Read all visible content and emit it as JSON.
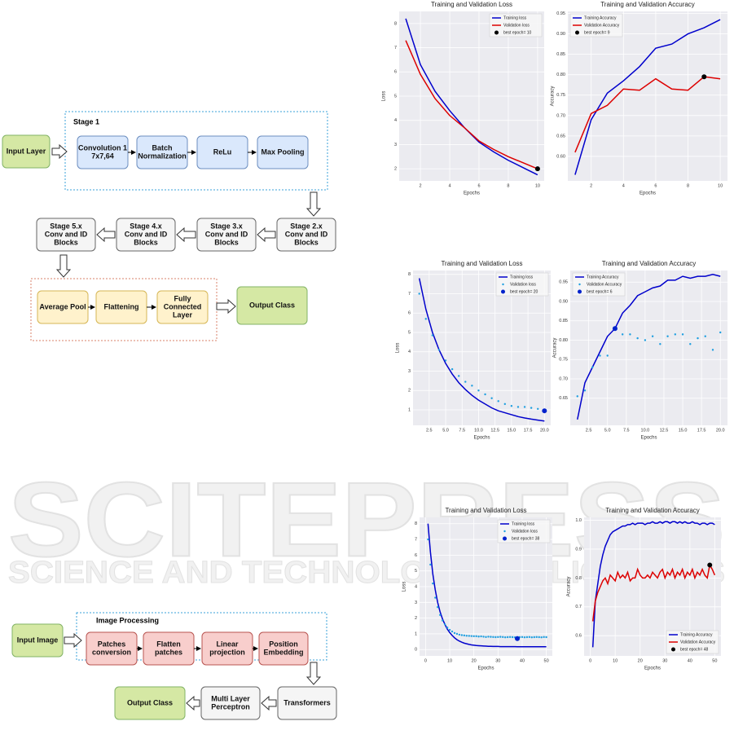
{
  "resnet": {
    "group_title": "Stage 1",
    "nodes": [
      [
        "Input Layer"
      ],
      [
        "Convolution 1",
        "7x7,64"
      ],
      [
        "Batch",
        "Normalization"
      ],
      [
        "ReLu"
      ],
      [
        "Max Pooling"
      ],
      [
        "Stage 2.x",
        "Conv and ID",
        "Blocks"
      ],
      [
        "Stage 3.x",
        "Conv and ID",
        "Blocks"
      ],
      [
        "Stage 4.x",
        "Conv and ID",
        "Blocks"
      ],
      [
        "Stage 5.x",
        "Conv and ID",
        "Blocks"
      ],
      [
        "Average Pool"
      ],
      [
        "Flattening"
      ],
      [
        "Fully",
        "Connected",
        "Layer"
      ],
      [
        "Output Class"
      ]
    ]
  },
  "vit": {
    "group_title": "Image Processing",
    "nodes": [
      [
        "Input Image"
      ],
      [
        "Patches",
        "conversion"
      ],
      [
        "Flatten",
        "patches"
      ],
      [
        "Linear",
        "projection"
      ],
      [
        "Position",
        "Embedding"
      ],
      [
        "Transformers"
      ],
      [
        "Multi Layer",
        "Perceptron"
      ],
      [
        "Output Class"
      ]
    ]
  },
  "watermark": [
    "SCITEPRESS",
    "SCIENCE AND TECHNOLOGY PUBLICATIONS"
  ],
  "chart_data": [
    {
      "type": "line",
      "title": "Training and Validation Loss",
      "x_label": "Epochs",
      "y_label": "Loss",
      "x": [
        1,
        2,
        3,
        4,
        5,
        6,
        7,
        8,
        9,
        10
      ],
      "series": [
        {
          "name": "Training loss",
          "color": "#0000cc",
          "style": "line",
          "values": [
            8.2,
            6.3,
            5.2,
            4.4,
            3.7,
            3.1,
            2.7,
            2.35,
            2.05,
            1.75
          ]
        },
        {
          "name": "Validation loss",
          "color": "#dd0000",
          "style": "line",
          "values": [
            7.3,
            5.9,
            4.9,
            4.2,
            3.7,
            3.15,
            2.8,
            2.5,
            2.25,
            2.0
          ]
        }
      ],
      "best": {
        "name": "best epoch= 10",
        "x": 10,
        "value": 2.0,
        "color": "#000000"
      },
      "xlim": [
        0.55,
        10.45
      ],
      "ylim": [
        1.5,
        8.5
      ],
      "xticks": [
        2,
        4,
        6,
        8,
        10
      ],
      "yticks": [
        2,
        3,
        4,
        5,
        6,
        7,
        8
      ],
      "grid": true,
      "legend": "upper right"
    },
    {
      "type": "line",
      "title": "Training and Validation Accuracy",
      "x_label": "Epochs",
      "y_label": "Accuracy",
      "x": [
        1,
        2,
        3,
        4,
        5,
        6,
        7,
        8,
        9,
        10
      ],
      "series": [
        {
          "name": "Training Accuracy",
          "color": "#0000cc",
          "style": "line",
          "values": [
            0.555,
            0.69,
            0.755,
            0.785,
            0.82,
            0.865,
            0.875,
            0.9,
            0.915,
            0.935
          ]
        },
        {
          "name": "Validation Accuracy",
          "color": "#dd0000",
          "style": "line",
          "values": [
            0.61,
            0.705,
            0.725,
            0.765,
            0.762,
            0.79,
            0.765,
            0.762,
            0.795,
            0.79
          ]
        }
      ],
      "best": {
        "name": "best epoch= 9",
        "x": 9,
        "value": 0.795,
        "color": "#000000"
      },
      "xlim": [
        0.55,
        10.45
      ],
      "ylim": [
        0.54,
        0.955
      ],
      "xticks": [
        2,
        4,
        6,
        8,
        10
      ],
      "yticks": [
        {
          "value": 0.6,
          "label": "0.60"
        },
        0.65,
        {
          "value": 0.7,
          "label": "0.70"
        },
        0.75,
        {
          "value": 0.8,
          "label": "0.80"
        },
        0.85,
        {
          "value": 0.9,
          "label": "0.90"
        },
        0.95
      ],
      "grid": true,
      "legend": "upper left"
    },
    {
      "type": "line",
      "title": "Training and Validation Loss",
      "x_label": "Epochs",
      "y_label": "Loss",
      "x": [
        1,
        2,
        3,
        4,
        5,
        6,
        7,
        8,
        9,
        10,
        11,
        12,
        13,
        14,
        15,
        16,
        17,
        18,
        19,
        20
      ],
      "series": [
        {
          "name": "Training loss",
          "color": "#0000cc",
          "style": "line",
          "values": [
            7.8,
            6.2,
            5.0,
            4.1,
            3.4,
            2.85,
            2.4,
            2.05,
            1.75,
            1.5,
            1.3,
            1.1,
            0.95,
            0.85,
            0.75,
            0.65,
            0.58,
            0.52,
            0.47,
            0.42
          ]
        },
        {
          "name": "Validation loss",
          "color": "#1f9fe0",
          "style": "markers",
          "values": [
            7.0,
            5.7,
            4.85,
            4.1,
            3.55,
            3.1,
            2.75,
            2.45,
            2.25,
            2.0,
            1.8,
            1.6,
            1.45,
            1.3,
            1.2,
            1.15,
            1.15,
            1.1,
            1.05,
            0.95
          ]
        }
      ],
      "best": {
        "name": "best epoch= 20",
        "x": 20,
        "value": 0.95,
        "color": "#0022cc"
      },
      "xlim": [
        0.05,
        20.95
      ],
      "ylim": [
        0.2,
        8.2
      ],
      "xticks": [
        2.5,
        {
          "value": 5,
          "label": "5.0"
        },
        7.5,
        {
          "value": 10,
          "label": "10.0"
        },
        12.5,
        {
          "value": 15,
          "label": "15.0"
        },
        17.5,
        {
          "value": 20,
          "label": "20.0"
        }
      ],
      "yticks": [
        1,
        2,
        3,
        4,
        5,
        6,
        7,
        8
      ],
      "grid": true,
      "legend": "upper right"
    },
    {
      "type": "line",
      "title": "Training and Validation Accuracy",
      "x_label": "Epochs",
      "y_label": "Accuracy",
      "x": [
        1,
        2,
        3,
        4,
        5,
        6,
        7,
        8,
        9,
        10,
        11,
        12,
        13,
        14,
        15,
        16,
        17,
        18,
        19,
        20
      ],
      "series": [
        {
          "name": "Training Accuracy",
          "color": "#0000cc",
          "style": "line",
          "values": [
            0.595,
            0.69,
            0.73,
            0.77,
            0.81,
            0.83,
            0.87,
            0.89,
            0.915,
            0.925,
            0.935,
            0.94,
            0.955,
            0.955,
            0.965,
            0.96,
            0.965,
            0.965,
            0.97,
            0.965
          ]
        },
        {
          "name": "Validation Accuracy",
          "color": "#1f9fe0",
          "style": "markers",
          "values": [
            0.655,
            0.67,
            0.73,
            0.76,
            0.76,
            0.83,
            0.815,
            0.815,
            0.805,
            0.8,
            0.81,
            0.79,
            0.81,
            0.815,
            0.815,
            0.79,
            0.805,
            0.81,
            0.775,
            0.82
          ]
        }
      ],
      "best": {
        "name": "best epoch= 6",
        "x": 6,
        "value": 0.83,
        "color": "#0022cc"
      },
      "xlim": [
        0.05,
        20.95
      ],
      "ylim": [
        0.58,
        0.98
      ],
      "xticks": [
        2.5,
        {
          "value": 5,
          "label": "5.0"
        },
        7.5,
        {
          "value": 10,
          "label": "10.0"
        },
        12.5,
        {
          "value": 15,
          "label": "15.0"
        },
        17.5,
        {
          "value": 20,
          "label": "20.0"
        }
      ],
      "yticks": [
        0.65,
        {
          "value": 0.7,
          "label": "0.70"
        },
        0.75,
        {
          "value": 0.8,
          "label": "0.80"
        },
        0.85,
        {
          "value": 0.9,
          "label": "0.90"
        },
        0.95
      ],
      "grid": true,
      "legend": "upper left"
    },
    {
      "type": "line",
      "title": "Training and Validation Loss",
      "x_label": "Epochs",
      "y_label": "Loss",
      "x": [
        1,
        2,
        3,
        4,
        5,
        6,
        7,
        8,
        9,
        10,
        11,
        12,
        13,
        14,
        15,
        16,
        17,
        18,
        19,
        20,
        21,
        22,
        23,
        24,
        25,
        26,
        27,
        28,
        29,
        30,
        31,
        32,
        33,
        34,
        35,
        36,
        37,
        38,
        39,
        40,
        41,
        42,
        43,
        44,
        45,
        46,
        47,
        48,
        49,
        50
      ],
      "series": [
        {
          "name": "Training loss",
          "color": "#0000cc",
          "style": "line",
          "values": [
            8.0,
            6.2,
            4.8,
            3.8,
            3.0,
            2.4,
            1.95,
            1.6,
            1.3,
            1.08,
            0.9,
            0.75,
            0.63,
            0.54,
            0.47,
            0.41,
            0.37,
            0.33,
            0.3,
            0.28,
            0.26,
            0.25,
            0.24,
            0.23,
            0.22,
            0.21,
            0.21,
            0.2,
            0.2,
            0.2,
            0.19,
            0.19,
            0.19,
            0.19,
            0.19,
            0.19,
            0.19,
            0.18,
            0.18,
            0.18,
            0.18,
            0.18,
            0.18,
            0.18,
            0.18,
            0.18,
            0.18,
            0.18,
            0.18,
            0.18
          ]
        },
        {
          "name": "Validation loss",
          "color": "#1f9fe0",
          "style": "markers",
          "values": [
            7.0,
            5.4,
            4.2,
            3.3,
            2.7,
            2.2,
            1.85,
            1.6,
            1.4,
            1.25,
            1.15,
            1.05,
            1.0,
            0.95,
            0.92,
            0.9,
            0.88,
            0.87,
            0.86,
            0.85,
            0.85,
            0.83,
            0.84,
            0.82,
            0.8,
            0.82,
            0.81,
            0.8,
            0.79,
            0.8,
            0.81,
            0.8,
            0.78,
            0.79,
            0.8,
            0.79,
            0.78,
            0.7,
            0.79,
            0.8,
            0.78,
            0.79,
            0.8,
            0.78,
            0.79,
            0.8,
            0.79,
            0.78,
            0.8,
            0.79
          ]
        }
      ],
      "best": {
        "name": "best epoch= 38",
        "x": 38,
        "value": 0.7,
        "color": "#0022cc"
      },
      "xlim": [
        -2.5,
        52.5
      ],
      "ylim": [
        -0.4,
        8.4
      ],
      "xticks": [
        0,
        10,
        20,
        30,
        40,
        50
      ],
      "yticks": [
        0,
        1,
        2,
        3,
        4,
        5,
        6,
        7,
        8
      ],
      "grid": true,
      "legend": "upper right"
    },
    {
      "type": "line",
      "title": "Training and Validation Accuracy",
      "x_label": "Epochs",
      "y_label": "Accuracy",
      "x": [
        1,
        2,
        3,
        4,
        5,
        6,
        7,
        8,
        9,
        10,
        11,
        12,
        13,
        14,
        15,
        16,
        17,
        18,
        19,
        20,
        21,
        22,
        23,
        24,
        25,
        26,
        27,
        28,
        29,
        30,
        31,
        32,
        33,
        34,
        35,
        36,
        37,
        38,
        39,
        40,
        41,
        42,
        43,
        44,
        45,
        46,
        47,
        48,
        49,
        50
      ],
      "series": [
        {
          "name": "Training Accuracy",
          "color": "#0000cc",
          "style": "line",
          "values": [
            0.56,
            0.72,
            0.78,
            0.84,
            0.88,
            0.91,
            0.93,
            0.95,
            0.96,
            0.965,
            0.97,
            0.975,
            0.98,
            0.98,
            0.985,
            0.985,
            0.99,
            0.985,
            0.99,
            0.99,
            0.99,
            0.985,
            0.99,
            0.99,
            0.995,
            0.99,
            0.99,
            0.995,
            0.99,
            0.995,
            0.995,
            0.99,
            0.995,
            0.995,
            0.99,
            0.995,
            0.99,
            0.995,
            0.99,
            0.99,
            0.995,
            0.99,
            0.99,
            0.985,
            0.99,
            0.99,
            0.985,
            0.99,
            0.99,
            0.985
          ]
        },
        {
          "name": "Validation Accuracy",
          "color": "#dd0000",
          "style": "line",
          "values": [
            0.65,
            0.72,
            0.75,
            0.77,
            0.79,
            0.8,
            0.78,
            0.81,
            0.8,
            0.79,
            0.82,
            0.8,
            0.81,
            0.8,
            0.82,
            0.79,
            0.8,
            0.8,
            0.83,
            0.81,
            0.8,
            0.8,
            0.81,
            0.8,
            0.82,
            0.81,
            0.8,
            0.82,
            0.83,
            0.8,
            0.82,
            0.81,
            0.83,
            0.8,
            0.82,
            0.81,
            0.83,
            0.8,
            0.82,
            0.81,
            0.83,
            0.8,
            0.82,
            0.81,
            0.83,
            0.81,
            0.8,
            0.845,
            0.83,
            0.81
          ]
        }
      ],
      "best": {
        "name": "best epoch= 48",
        "x": 48,
        "value": 0.845,
        "color": "#000000"
      },
      "xlim": [
        -2.5,
        52.5
      ],
      "ylim": [
        0.53,
        1.01
      ],
      "xticks": [
        0,
        10,
        20,
        30,
        40,
        50
      ],
      "yticks": [
        0.6,
        0.7,
        0.8,
        0.9,
        {
          "value": 1,
          "label": "1.0"
        }
      ],
      "grid": true,
      "legend": "lower right"
    }
  ]
}
